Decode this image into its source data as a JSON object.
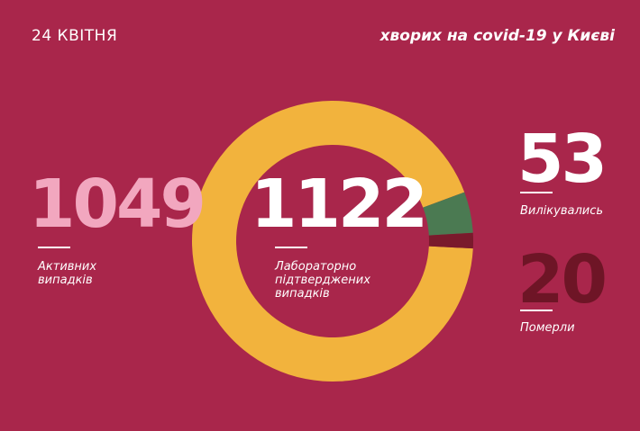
{
  "chart_data": {
    "type": "donut",
    "title": "хворих на covid-19 у Києві",
    "subtitle": "24 КВІТНЯ",
    "categories": [
      "Активних випадків",
      "Вилікувались",
      "Померли"
    ],
    "values": [
      1049,
      53,
      20
    ],
    "colors": [
      "#f2b33d",
      "#4b7a52",
      "#7a1a2c"
    ],
    "total": 1122,
    "total_label": "Лабораторно підтверджених випадків"
  }
}
